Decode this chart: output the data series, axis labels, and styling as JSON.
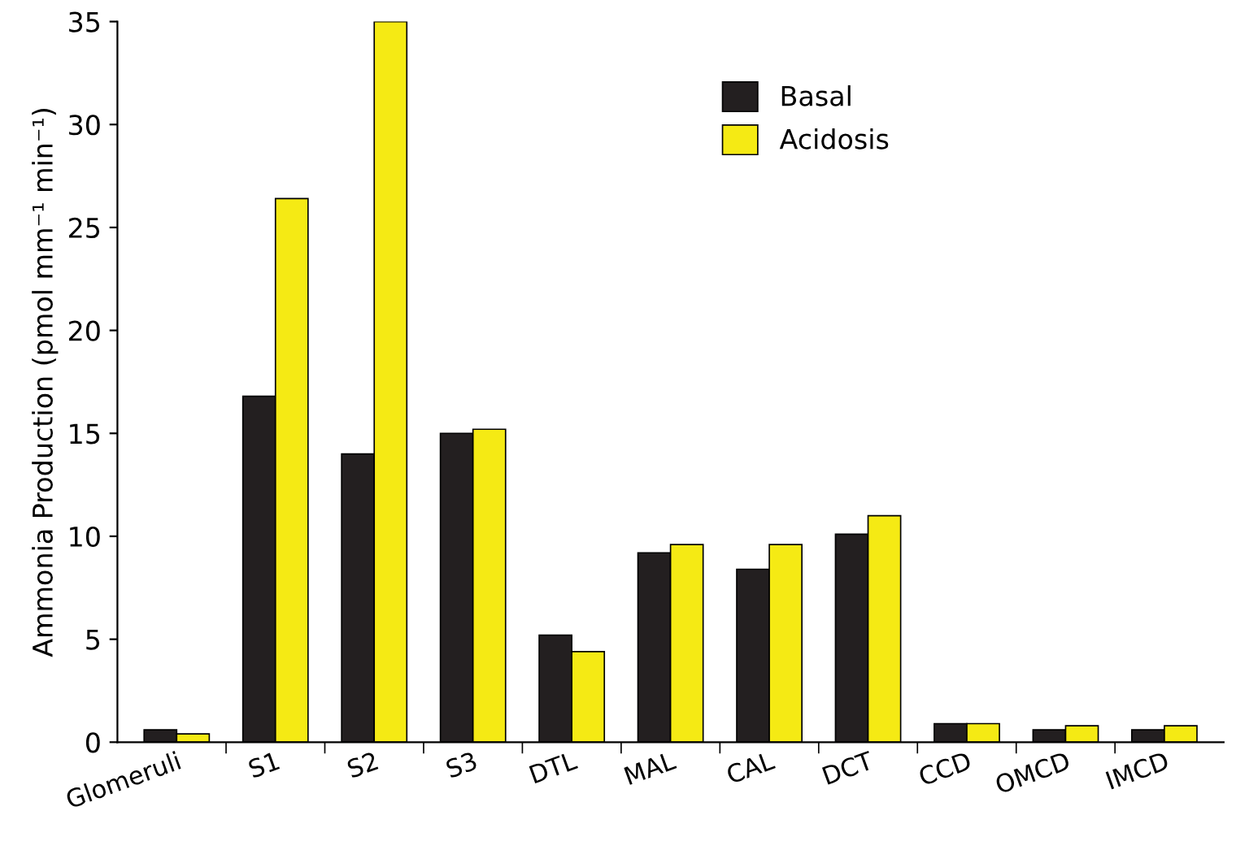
{
  "chart_data": {
    "type": "bar",
    "ylabel": "Ammonia Production (pmol mm⁻¹ min⁻¹)",
    "categories": [
      "Glomeruli",
      "S1",
      "S2",
      "S3",
      "DTL",
      "MAL",
      "CAL",
      "DCT",
      "CCD",
      "OMCD",
      "IMCD"
    ],
    "series": [
      {
        "name": "Basal",
        "color": "#231f20",
        "values": [
          0.6,
          16.8,
          14.0,
          15.0,
          5.2,
          9.2,
          8.4,
          10.1,
          0.9,
          0.6,
          0.6
        ]
      },
      {
        "name": "Acidosis",
        "color": "#f5ea14",
        "values": [
          0.4,
          26.4,
          35.0,
          15.2,
          4.4,
          9.6,
          9.6,
          11.0,
          0.9,
          0.8,
          0.8
        ]
      }
    ],
    "ylim": [
      0,
      35
    ],
    "yticks": [
      0,
      5,
      10,
      15,
      20,
      25,
      30,
      35
    ],
    "grid": false,
    "legend": "top right"
  }
}
